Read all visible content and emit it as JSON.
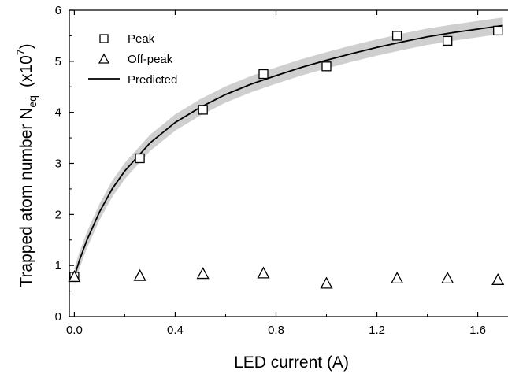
{
  "chart_data": {
    "type": "scatter",
    "xlabel": "LED current (A)",
    "ylabel": "Trapped atom number N",
    "ylabel_subscript": "eq",
    "ylabel_units": "(x10",
    "ylabel_exponent": "7",
    "ylabel_units_close": ")",
    "xlim": [
      -0.02,
      1.72
    ],
    "ylim": [
      0,
      6
    ],
    "x_ticks": [
      "0.0",
      "0.4",
      "0.8",
      "1.2",
      "1.6"
    ],
    "x_tick_values": [
      0.0,
      0.4,
      0.8,
      1.2,
      1.6
    ],
    "y_ticks": [
      "0",
      "1",
      "2",
      "3",
      "4",
      "5",
      "6"
    ],
    "y_tick_values": [
      0,
      1,
      2,
      3,
      4,
      5,
      6
    ],
    "grid": false,
    "legend_position": "top-left",
    "series": [
      {
        "name": "Peak",
        "marker": "square",
        "x": [
          0.0,
          0.26,
          0.51,
          0.75,
          1.0,
          1.28,
          1.48,
          1.68
        ],
        "y": [
          0.78,
          3.1,
          4.05,
          4.75,
          4.9,
          5.5,
          5.4,
          5.6
        ]
      },
      {
        "name": "Off-peak",
        "marker": "triangle",
        "x": [
          0.0,
          0.26,
          0.51,
          0.75,
          1.0,
          1.28,
          1.48,
          1.68
        ],
        "y": [
          0.78,
          0.8,
          0.84,
          0.85,
          0.65,
          0.75,
          0.75,
          0.72
        ]
      },
      {
        "name": "Predicted",
        "marker": "line",
        "x": [
          0.0,
          0.02,
          0.05,
          0.1,
          0.15,
          0.2,
          0.3,
          0.4,
          0.5,
          0.6,
          0.7,
          0.8,
          0.9,
          1.0,
          1.1,
          1.2,
          1.3,
          1.4,
          1.5,
          1.6,
          1.7
        ],
        "y": [
          0.78,
          1.1,
          1.5,
          2.05,
          2.5,
          2.85,
          3.4,
          3.8,
          4.1,
          4.35,
          4.55,
          4.72,
          4.88,
          5.02,
          5.15,
          5.27,
          5.38,
          5.48,
          5.56,
          5.63,
          5.7
        ],
        "band_halfwidth": 0.16
      }
    ],
    "colors": {
      "line": "#000000",
      "band": "#cfcfcf",
      "marker_stroke": "#000000",
      "marker_fill": "#ffffff"
    }
  }
}
